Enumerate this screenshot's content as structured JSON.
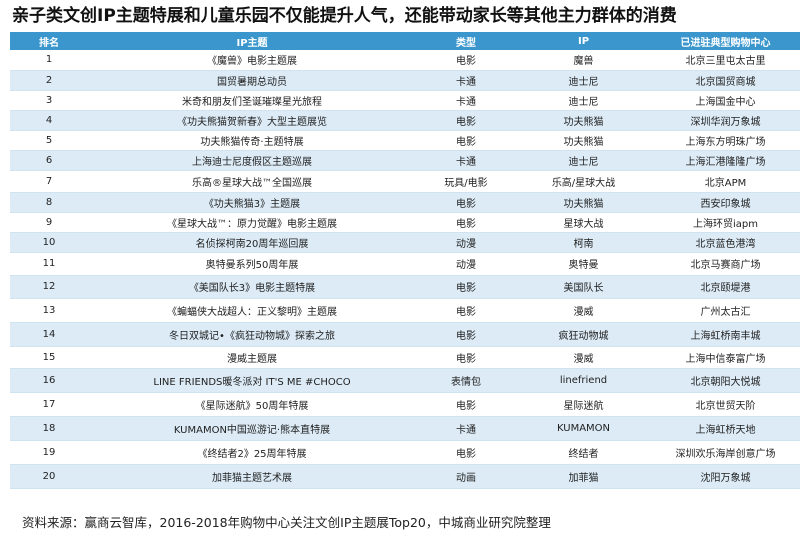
{
  "title": "亲子类文创IP主题特展和儿童乐园不仅能提升人气，还能带动家长等其他主力群体的消费",
  "table": {
    "headers": [
      "排名",
      "IP主题",
      "类型",
      "IP",
      "已进驻典型购物中心"
    ],
    "rows": [
      [
        "1",
        "《魔兽》电影主题展",
        "电影",
        "魔兽",
        "北京三里屯太古里"
      ],
      [
        "2",
        "国贸暑期总动员",
        "卡通",
        "迪士尼",
        "北京国贸商城"
      ],
      [
        "3",
        "米奇和朋友们圣诞璀璨星光旅程",
        "卡通",
        "迪士尼",
        "上海国金中心"
      ],
      [
        "4",
        "《功夫熊猫贺新春》大型主题展览",
        "电影",
        "功夫熊猫",
        "深圳华润万象城"
      ],
      [
        "5",
        "功夫熊猫传奇·主题特展",
        "电影",
        "功夫熊猫",
        "上海东方明珠广场"
      ],
      [
        "6",
        "上海迪士尼度假区主题巡展",
        "卡通",
        "迪士尼",
        "上海汇港隆隆广场"
      ],
      [
        "7",
        "乐高®星球大战™全国巡展",
        "玩具/电影",
        "乐高/星球大战",
        "北京APM"
      ],
      [
        "8",
        "《功夫熊猫3》主题展",
        "电影",
        "功夫熊猫",
        "西安印象城"
      ],
      [
        "9",
        "《星球大战™：原力觉醒》电影主题展",
        "电影",
        "星球大战",
        "上海环贸iapm"
      ],
      [
        "10",
        "名侦探柯南20周年巡回展",
        "动漫",
        "柯南",
        "北京蓝色港湾"
      ],
      [
        "11",
        "奥特曼系列50周年展",
        "动漫",
        "奥特曼",
        "北京马赛商广场"
      ],
      [
        "12",
        "《美国队长3》电影主题特展",
        "电影",
        "美国队长",
        "北京颐堤港"
      ],
      [
        "13",
        "《蝙蝠侠大战超人：正义黎明》主题展",
        "电影",
        "漫威",
        "广州太古汇"
      ],
      [
        "14",
        "冬日双城记•《疯狂动物城》探索之旅",
        "电影",
        "疯狂动物城",
        "上海虹桥南丰城"
      ],
      [
        "15",
        "漫威主题展",
        "电影",
        "漫威",
        "上海中信泰富广场"
      ],
      [
        "16",
        "LINE FRIENDS暖冬派对 IT'S ME #CHOCO",
        "表情包",
        "linefriend",
        "北京朝阳大悦城"
      ],
      [
        "17",
        "《星际迷航》50周年特展",
        "电影",
        "星际迷航",
        "北京世贸天阶"
      ],
      [
        "18",
        "KUMAMON中国巡游记·熊本直特展",
        "卡通",
        "KUMAMON",
        "上海虹桥天地"
      ],
      [
        "19",
        "《终结者2》25周年特展",
        "电影",
        "终结者",
        "深圳欢乐海岸创意广场"
      ],
      [
        "20",
        "加菲猫主题艺术展",
        "动画",
        "加菲猫",
        "沈阳万象城"
      ]
    ]
  },
  "footer": "资料来源：赢商云智库，2016-2018年购物中心关注文创IP主题展Top20，中城商业研究院整理",
  "colors": {
    "header_bg": "#3a96cc",
    "row_stripe": "#dcebf6"
  }
}
